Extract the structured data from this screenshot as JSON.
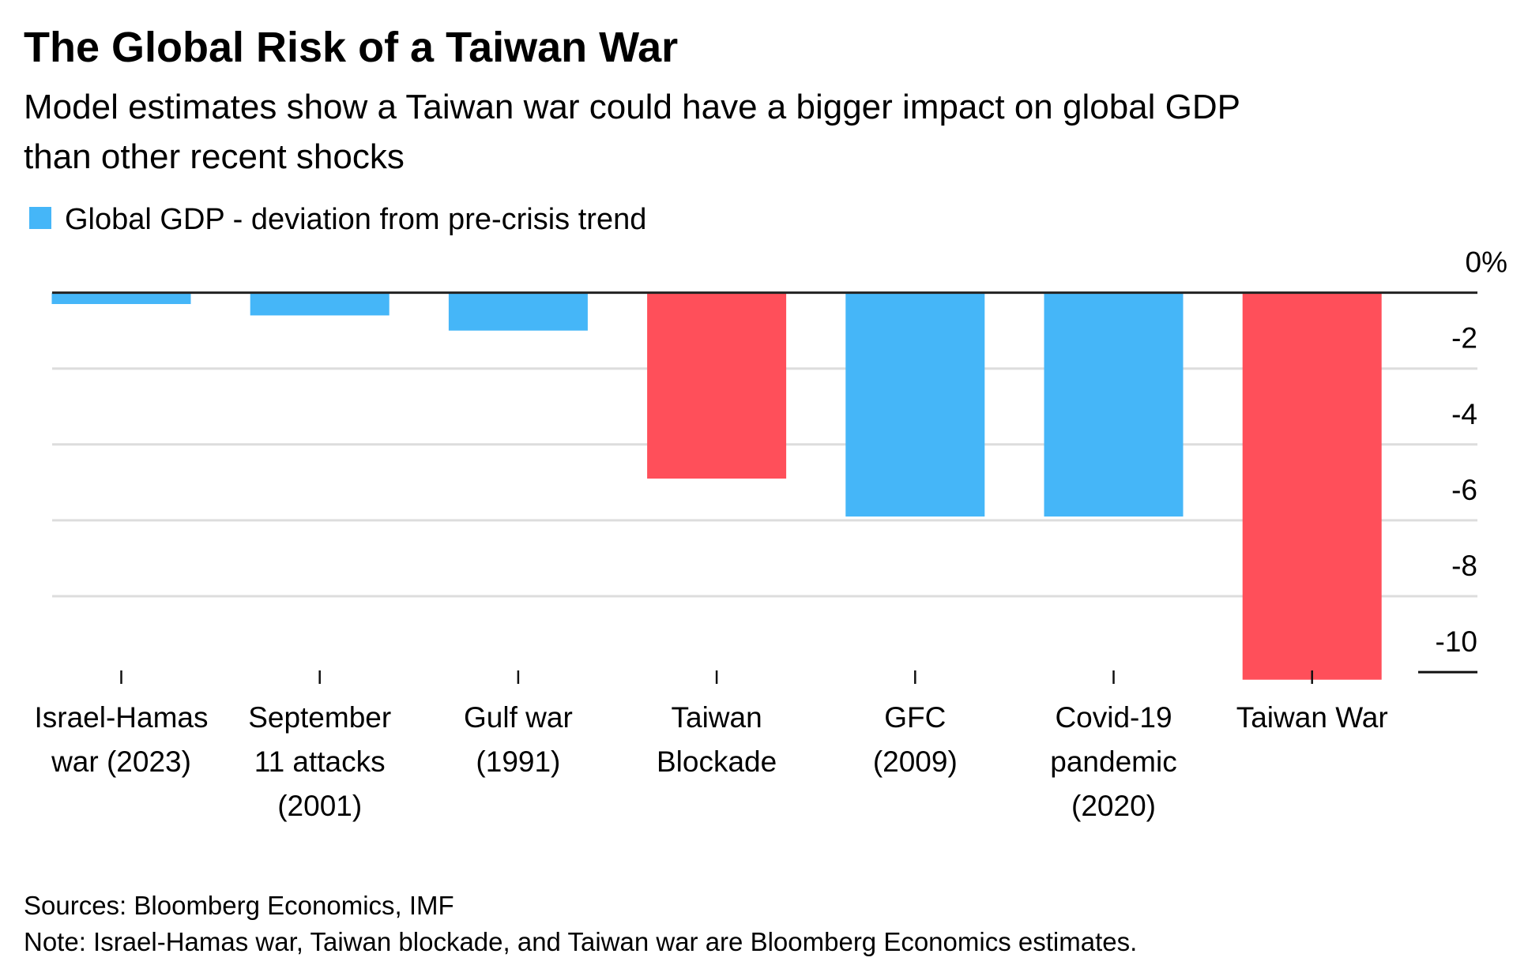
{
  "header": {
    "title": "The Global Risk of a Taiwan War",
    "subtitle_lines": [
      "Model estimates show a Taiwan war could have a bigger impact on global GDP",
      "than other recent shocks"
    ]
  },
  "footer": {
    "sources": "Sources: Bloomberg Economics, IMF",
    "note": "Note: Israel-Hamas war, Taiwan blockade, and Taiwan war are Bloomberg Economics estimates."
  },
  "chart_data": {
    "type": "bar",
    "title": "The Global Risk of a Taiwan War",
    "xlabel": "",
    "ylabel": "",
    "legend": {
      "label": "Global GDP - deviation from pre-crisis trend",
      "color": "#45b6f8",
      "placement": "top-left"
    },
    "categories": [
      [
        "Israel-Hamas",
        "war (2023)"
      ],
      [
        "September",
        "11 attacks",
        "(2001)"
      ],
      [
        "Gulf war",
        "(1991)"
      ],
      [
        "Taiwan",
        "Blockade"
      ],
      [
        "GFC",
        "(2009)"
      ],
      [
        "Covid-19",
        "pandemic",
        "(2020)"
      ],
      [
        "Taiwan War"
      ]
    ],
    "values": [
      -0.3,
      -0.6,
      -1.0,
      -4.9,
      -5.9,
      -5.9,
      -10.2
    ],
    "colors": [
      "#45b6f8",
      "#45b6f8",
      "#45b6f8",
      "#ff4f5a",
      "#45b6f8",
      "#45b6f8",
      "#ff4f5a"
    ],
    "ylim": [
      -10,
      0
    ],
    "yticks": [
      0,
      -2,
      -4,
      -6,
      -8,
      -10
    ],
    "ytick_labels": [
      "0%",
      "-2",
      "-4",
      "-6",
      "-8",
      "-10"
    ],
    "grid": true,
    "zero_line_color": "#222222",
    "grid_color": "#dddddd"
  }
}
